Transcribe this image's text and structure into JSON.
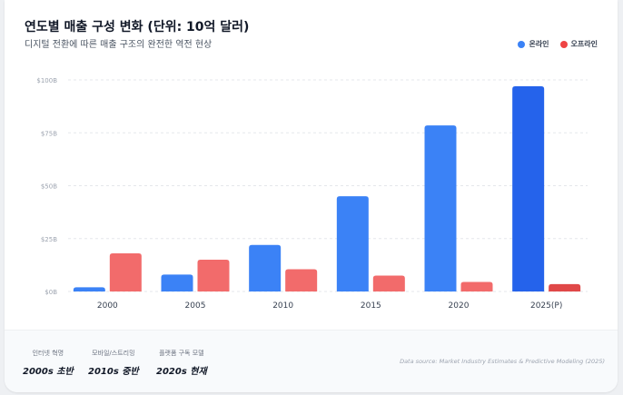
{
  "header": {
    "title": "연도별 매출 구성 변화 (단위: 10억 달러)",
    "subtitle": "디지털 전환에 따른 매출 구조의 완전한 역전 현상"
  },
  "legend": [
    {
      "label": "온라인",
      "color": "#3b82f6"
    },
    {
      "label": "오프라인",
      "color": "#ef4444"
    }
  ],
  "chart_data": {
    "type": "bar",
    "title": "연도별 매출 구성 변화 (단위: 10억 달러)",
    "categories": [
      "2000",
      "2005",
      "2010",
      "2015",
      "2020",
      "2025(P)"
    ],
    "series": [
      {
        "name": "온라인",
        "color": "#3b82f6",
        "highlight_color": "#2563eb",
        "values": [
          2,
          8,
          22,
          45,
          78.5,
          97
        ]
      },
      {
        "name": "오프라인",
        "color": "#f26b6b",
        "highlight_color": "#e04848",
        "values": [
          18,
          15,
          10.5,
          7.5,
          4.5,
          3.5
        ]
      }
    ],
    "yticks": [
      0,
      25,
      50,
      75,
      100
    ],
    "ytick_labels": [
      "$0B",
      "$25B",
      "$50B",
      "$75B",
      "$100B"
    ],
    "ylim": [
      0,
      100
    ],
    "grid": true,
    "legend_position": "top-right"
  },
  "footer": {
    "eras": [
      {
        "label": "인터넷 혁명",
        "value": "2000s 초반"
      },
      {
        "label": "모바일/스트리밍",
        "value": "2010s 중반"
      },
      {
        "label": "플랫폼 구독 모델",
        "value": "2020s 현재"
      }
    ],
    "source": "Data source: Market Industry Estimates & Predictive Modeling (2025)"
  }
}
